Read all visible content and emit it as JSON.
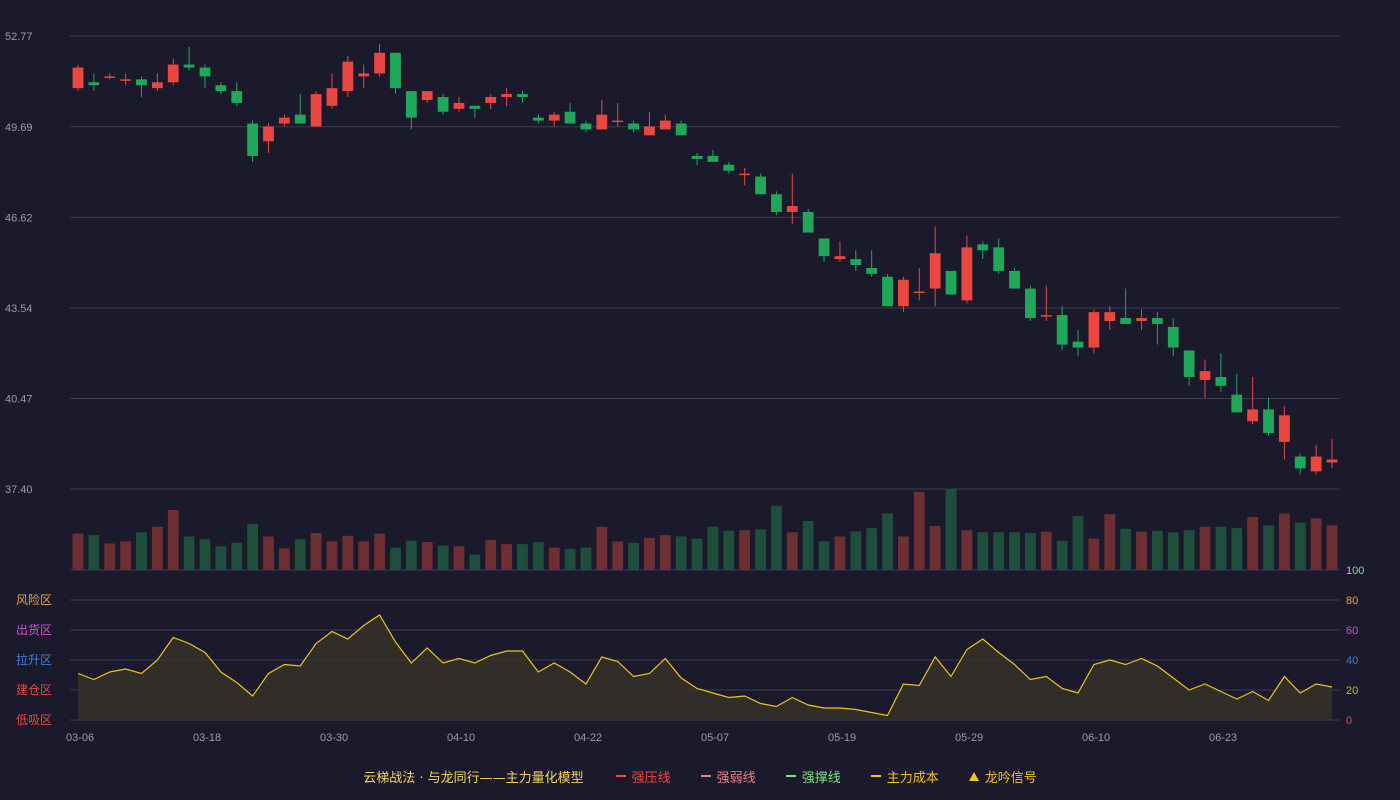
{
  "chart_data": [
    {
      "type": "candlestick",
      "y_ticks": [
        "52.77",
        "49.69",
        "46.62",
        "43.54",
        "40.47",
        "37.40"
      ],
      "ylim": [
        37.4,
        52.77
      ],
      "x_tick_labels": [
        "03-06",
        "03-18",
        "03-30",
        "04-10",
        "04-22",
        "05-07",
        "05-19",
        "05-29",
        "06-10",
        "06-23"
      ],
      "colors": {
        "up": "#e9473f",
        "down": "#1fa85a"
      },
      "candles": [
        [
          51.0,
          51.7,
          51.8,
          50.9
        ],
        [
          51.2,
          51.1,
          51.5,
          50.9
        ],
        [
          51.4,
          51.4,
          51.5,
          51.3
        ],
        [
          51.3,
          51.3,
          51.5,
          51.1
        ],
        [
          51.3,
          51.1,
          51.4,
          50.7
        ],
        [
          51.0,
          51.2,
          51.5,
          50.9
        ],
        [
          51.2,
          51.8,
          52.0,
          51.1
        ],
        [
          51.8,
          51.7,
          52.4,
          51.6
        ],
        [
          51.7,
          51.4,
          51.8,
          51.0
        ],
        [
          51.1,
          50.9,
          51.2,
          50.8
        ],
        [
          50.9,
          50.5,
          51.2,
          50.4
        ],
        [
          49.8,
          48.7,
          49.9,
          48.5
        ],
        [
          49.2,
          49.7,
          49.8,
          48.8
        ],
        [
          49.8,
          50.0,
          50.1,
          49.7
        ],
        [
          50.1,
          49.8,
          50.8,
          49.8
        ],
        [
          49.7,
          50.8,
          50.9,
          49.7
        ],
        [
          50.4,
          51.0,
          51.5,
          50.3
        ],
        [
          50.9,
          51.9,
          52.1,
          50.7
        ],
        [
          51.4,
          51.5,
          51.8,
          51.0
        ],
        [
          51.5,
          52.2,
          52.5,
          51.4
        ],
        [
          52.2,
          51.0,
          52.2,
          50.8
        ],
        [
          50.9,
          50.0,
          50.9,
          49.6
        ],
        [
          50.6,
          50.9,
          50.9,
          50.5
        ],
        [
          50.7,
          50.2,
          50.8,
          50.1
        ],
        [
          50.3,
          50.5,
          50.7,
          50.2
        ],
        [
          50.4,
          50.3,
          50.4,
          50.0
        ],
        [
          50.5,
          50.7,
          50.8,
          50.3
        ],
        [
          50.7,
          50.8,
          51.0,
          50.4
        ],
        [
          50.8,
          50.7,
          50.9,
          50.5
        ],
        [
          50.0,
          49.9,
          50.1,
          49.8
        ],
        [
          49.9,
          50.1,
          50.2,
          49.7
        ],
        [
          50.2,
          49.8,
          50.5,
          49.8
        ],
        [
          49.8,
          49.6,
          49.9,
          49.5
        ],
        [
          49.6,
          50.1,
          50.6,
          49.6
        ],
        [
          49.9,
          49.9,
          50.5,
          49.7
        ],
        [
          49.8,
          49.6,
          49.9,
          49.5
        ],
        [
          49.4,
          49.7,
          50.2,
          49.4
        ],
        [
          49.6,
          49.9,
          50.1,
          49.6
        ],
        [
          49.8,
          49.4,
          49.9,
          49.4
        ],
        [
          48.7,
          48.6,
          48.8,
          48.4
        ],
        [
          48.7,
          48.5,
          48.9,
          48.5
        ],
        [
          48.4,
          48.2,
          48.5,
          48.1
        ],
        [
          48.1,
          48.1,
          48.3,
          47.7
        ],
        [
          48.0,
          47.4,
          48.1,
          47.4
        ],
        [
          47.4,
          46.8,
          47.5,
          46.7
        ],
        [
          46.8,
          47.0,
          48.1,
          46.4
        ],
        [
          46.8,
          46.1,
          46.9,
          46.1
        ],
        [
          45.9,
          45.3,
          45.9,
          45.1
        ],
        [
          45.2,
          45.3,
          45.8,
          45.1
        ],
        [
          45.2,
          45.0,
          45.5,
          44.8
        ],
        [
          44.9,
          44.7,
          45.5,
          44.6
        ],
        [
          44.6,
          43.6,
          44.7,
          43.6
        ],
        [
          43.6,
          44.5,
          44.6,
          43.4
        ],
        [
          44.1,
          44.1,
          44.9,
          43.8
        ],
        [
          44.2,
          45.4,
          46.3,
          43.6
        ],
        [
          44.8,
          44.0,
          44.8,
          44.0
        ],
        [
          43.8,
          45.6,
          46.0,
          43.7
        ],
        [
          45.7,
          45.5,
          45.8,
          45.2
        ],
        [
          45.6,
          44.8,
          45.9,
          44.7
        ],
        [
          44.8,
          44.2,
          44.9,
          44.2
        ],
        [
          44.2,
          43.2,
          44.3,
          43.1
        ],
        [
          43.3,
          43.3,
          44.3,
          43.1
        ],
        [
          43.3,
          42.3,
          43.6,
          42.1
        ],
        [
          42.4,
          42.2,
          42.8,
          41.9
        ],
        [
          42.2,
          43.4,
          43.5,
          42.0
        ],
        [
          43.1,
          43.4,
          43.6,
          42.8
        ],
        [
          43.2,
          43.0,
          44.2,
          43.0
        ],
        [
          43.1,
          43.2,
          43.5,
          42.8
        ],
        [
          43.2,
          43.0,
          43.4,
          42.3
        ],
        [
          42.9,
          42.2,
          43.2,
          41.9
        ],
        [
          42.1,
          41.2,
          42.1,
          40.9
        ],
        [
          41.1,
          41.4,
          41.8,
          40.5
        ],
        [
          41.2,
          40.9,
          42.0,
          40.7
        ],
        [
          40.6,
          40.0,
          41.3,
          40.0
        ],
        [
          39.7,
          40.1,
          41.2,
          39.6
        ],
        [
          40.1,
          39.3,
          40.5,
          39.2
        ],
        [
          39.0,
          39.9,
          40.2,
          38.4
        ],
        [
          38.5,
          38.1,
          38.6,
          37.9
        ],
        [
          38.0,
          38.5,
          38.9,
          37.9
        ],
        [
          38.3,
          38.4,
          39.1,
          38.1
        ]
      ]
    },
    {
      "type": "bar",
      "title": "volume",
      "values": [
        52,
        50,
        38,
        41,
        54,
        62,
        86,
        48,
        44,
        34,
        39,
        66,
        48,
        31,
        44,
        53,
        41,
        49,
        41,
        52,
        32,
        42,
        40,
        35,
        34,
        22,
        43,
        37,
        37,
        40,
        32,
        30,
        32,
        62,
        41,
        39,
        46,
        50,
        48,
        45,
        62,
        56,
        57,
        58,
        92,
        54,
        70,
        41,
        48,
        55,
        60,
        81,
        48,
        112,
        63,
        116,
        57,
        54,
        54,
        54,
        53,
        55,
        42,
        77,
        45,
        80,
        59,
        55,
        56,
        54,
        57,
        62,
        62,
        60,
        76,
        64,
        81,
        68,
        74,
        64
      ],
      "colors": {
        "up": "#6e2f32",
        "down": "#1f4f3a"
      }
    },
    {
      "type": "area",
      "title": "云梯战法 · 与龙同行——主力量化模型",
      "zones": [
        {
          "label": "风险区",
          "color": "#e8a33c"
        },
        {
          "label": "出货区",
          "color": "#d04fc9"
        },
        {
          "label": "拉升区",
          "color": "#3e7fe0"
        },
        {
          "label": "建仓区",
          "color": "#e9473f"
        },
        {
          "label": "低吸区",
          "color": "#e9473f"
        }
      ],
      "y_ticks": [
        {
          "value": "100",
          "color": "#7fe27f"
        },
        {
          "value": "80",
          "color": "#e8a33c"
        },
        {
          "value": "60",
          "color": "#d04fc9"
        },
        {
          "value": "40",
          "color": "#3e7fe0"
        },
        {
          "value": "20",
          "color": "#e8a33c"
        },
        {
          "value": "0",
          "color": "#e9473f"
        }
      ],
      "ylim": [
        0,
        100
      ],
      "values": [
        31,
        27,
        32,
        34,
        31,
        40,
        55,
        51,
        45,
        32,
        25,
        16,
        31,
        37,
        36,
        51,
        59,
        54,
        63,
        70,
        52,
        38,
        48,
        38,
        41,
        38,
        43,
        46,
        46,
        32,
        38,
        32,
        24,
        42,
        39,
        29,
        31,
        41,
        28,
        21,
        18,
        15,
        16,
        11,
        9,
        15,
        10,
        8,
        8,
        7,
        5,
        3,
        24,
        23,
        42,
        29,
        47,
        54,
        45,
        37,
        27,
        29,
        21,
        18,
        37,
        40,
        37,
        41,
        36,
        28,
        20,
        24,
        19,
        14,
        19,
        13,
        29,
        18,
        24,
        22
      ],
      "line_color": "#f0c419"
    }
  ],
  "legend": {
    "title": "云梯战法 · 与龙同行——主力量化模型",
    "items": [
      {
        "label": "强压线",
        "color": "#e9473f",
        "style": "solid"
      },
      {
        "label": "强弱线",
        "color": "#f08080",
        "style": "dashed"
      },
      {
        "label": "强撑线",
        "color": "#7fe27f",
        "style": "solid"
      },
      {
        "label": "主力成本",
        "color": "#f0c419",
        "style": "dashed"
      },
      {
        "label": "龙吟信号",
        "color": "#f0c419",
        "style": "triangle"
      }
    ]
  }
}
